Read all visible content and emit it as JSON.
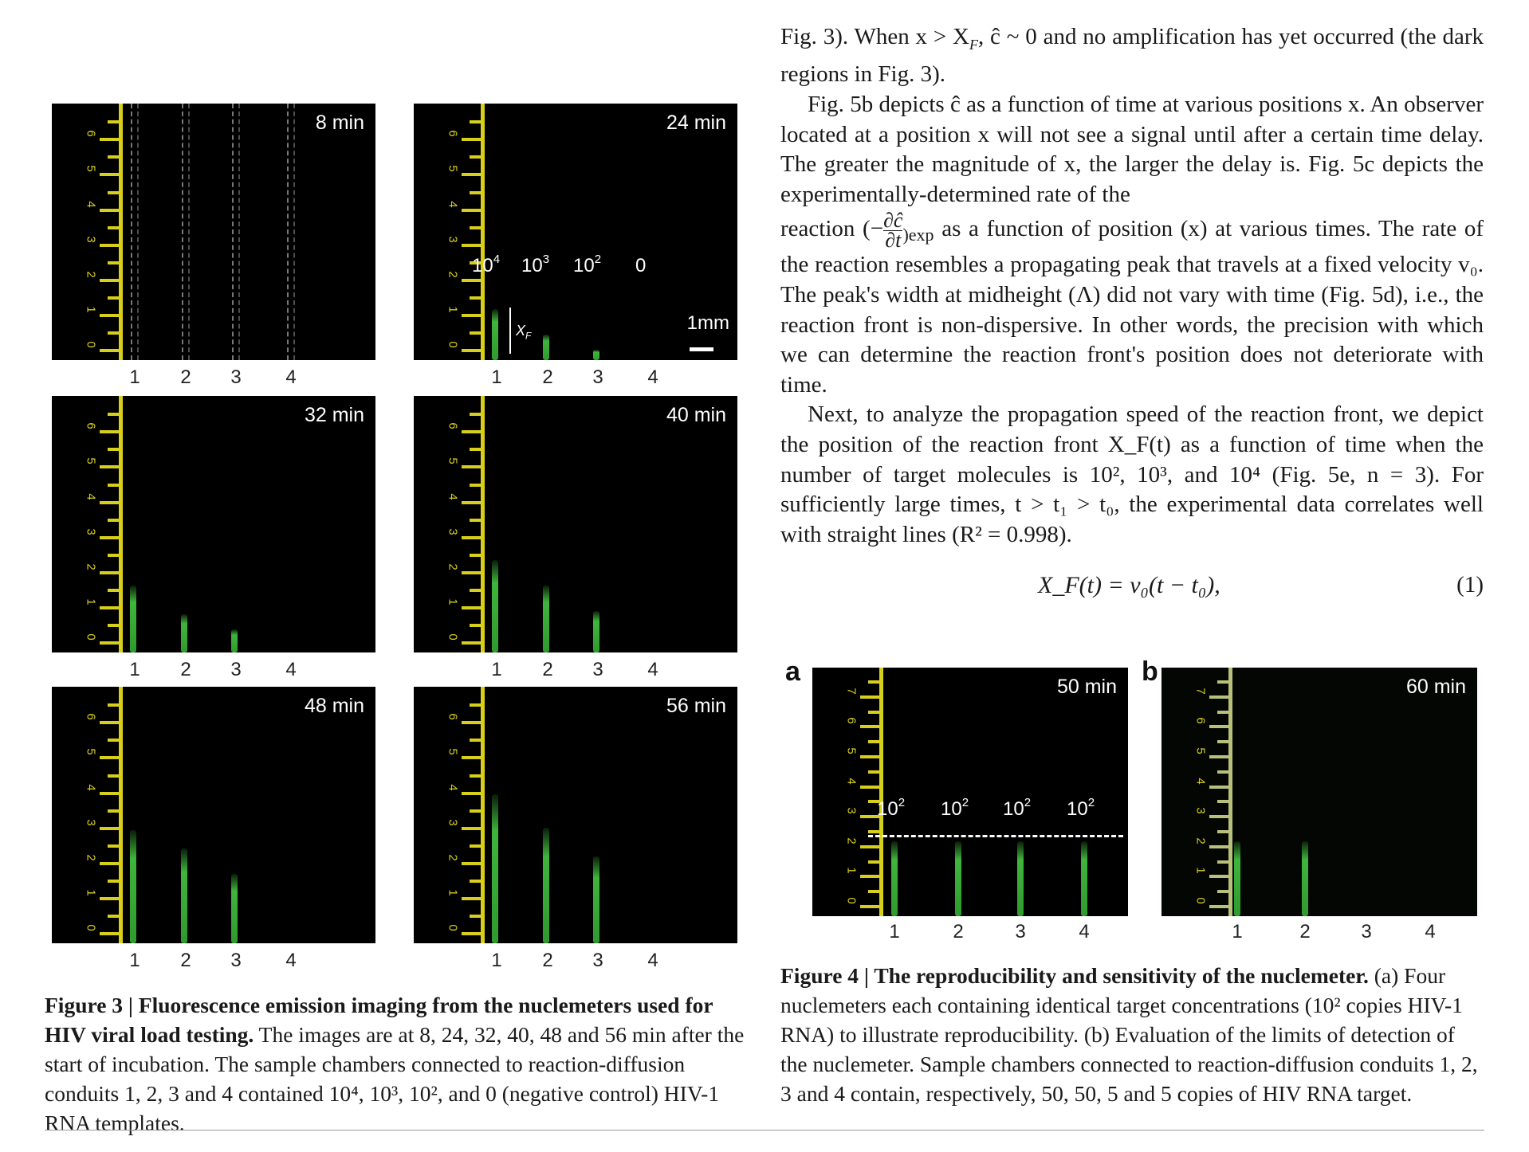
{
  "fig3": {
    "panels": [
      {
        "time": "8 min"
      },
      {
        "time": "24 min"
      },
      {
        "time": "32 min"
      },
      {
        "time": "40 min"
      },
      {
        "time": "48 min"
      },
      {
        "time": "56 min"
      }
    ],
    "lanes": [
      "1",
      "2",
      "3",
      "4"
    ],
    "ruler_numbers": [
      "0",
      "1",
      "2",
      "3",
      "4",
      "5",
      "6"
    ],
    "conc_labels": [
      "10",
      "10",
      "10",
      "0"
    ],
    "conc_exponents": [
      "4",
      "3",
      "2",
      ""
    ],
    "xf_label": "X",
    "xf_sub": "F",
    "scale_label": "1mm",
    "caption_bold": "Figure 3 | Fluorescence emission imaging from the nuclemeters used for HIV viral load testing.",
    "caption_rest": " The images are at 8, 24, 32, 40, 48 and 56 min after the start of incubation. The sample chambers connected to reaction-diffusion conduits 1, 2, 3 and 4 contained 10⁴, 10³, 10², and 0 (negative control) HIV-1 RNA templates."
  },
  "fig4": {
    "panel_a_letter": "a",
    "panel_b_letter": "b",
    "panel_a_time": "50 min",
    "panel_b_time": "60 min",
    "panel_a_conc": [
      "10",
      "10",
      "10",
      "10"
    ],
    "panel_a_exp": "2",
    "lanes": [
      "1",
      "2",
      "3",
      "4"
    ],
    "ruler_numbers": [
      "0",
      "1",
      "2",
      "3",
      "4",
      "5",
      "6",
      "7"
    ],
    "caption_bold": "Figure 4 | The reproducibility and sensitivity of the nuclemeter.",
    "caption_rest": " (a) Four nuclemeters each containing identical target concentrations (10² copies HIV-1 RNA) to illustrate reproducibility. (b) Evaluation of the limits of detection of the nuclemeter. Sample chambers connected to reaction-diffusion conduits 1, 2, 3 and 4 contain, respectively, 50, 50, 5 and 5 copies of HIV RNA target."
  },
  "body": {
    "p1": "Fig. 3). When x > X",
    "p1_sub": "F",
    "p1_b": ", ĉ ~ 0 and no amplification has yet occurred (the dark regions in Fig. 3).",
    "p2": "Fig. 5b depicts ĉ as a function of time at various positions x. An observer located at a position x will not see a signal until after a certain time delay. The greater the magnitude of x, the larger the delay is. Fig. 5c depicts the experimentally-determined rate of the",
    "p2_reaction": "reaction (−",
    "p2_frac_top": "∂ĉ",
    "p2_frac_bot": "∂t",
    "p2_exp": ")exp",
    "p2_after": " as a function of position (x) at various times. The rate of the reaction resembles a propagating peak that travels at a fixed velocity v₀. The peak's width at midheight (Λ) did not vary with time (Fig. 5d), i.e., the reaction front is non-dispersive. In other words, the precision with which we can determine the reaction front's position does not deteriorate with time.",
    "p3": "Next, to analyze the propagation speed of the reaction front, we depict the position of the reaction front X_F(t) as a function of time when the number of target molecules is 10², 10³, and 10⁴ (Fig. 5e, n = 3). For sufficiently large times, t > t₁ > t₀, the experimental data correlates well with straight lines (R² = 0.998).",
    "equation": "X_F(t) = v₀(t − t₀),",
    "eq_number": "(1)"
  }
}
